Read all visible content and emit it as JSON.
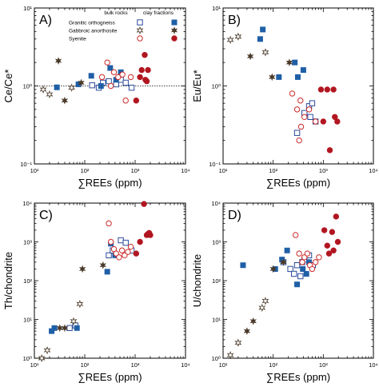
{
  "chart_data": [
    {
      "type": "scatter",
      "panel_label": "A)",
      "xlabel": "∑REEs (ppm)",
      "ylabel": "Ce/Ce*",
      "xscale": "log",
      "yscale": "log",
      "xlim": [
        10,
        10000
      ],
      "ylim": [
        0.1,
        10
      ],
      "x_tick_labels": [
        "10¹",
        "10²",
        "10³",
        "10⁴"
      ],
      "y_tick_labels": [
        "10⁻¹",
        "10⁰",
        "10¹"
      ],
      "reference_line": {
        "y": 1,
        "style": "dotted"
      },
      "legend": {
        "placement": "top-right",
        "headers": [
          "bulk rocks",
          "clay fractions"
        ],
        "rows": [
          "Granitic orthogneiss",
          "Gabbroic anorthosite",
          "Syenite"
        ]
      },
      "series": [
        {
          "name": "Granitic orthogneiss",
          "sample": "bulk rocks",
          "marker": "square-open",
          "color": "#2b4a9c",
          "points": [
            [
              140,
              1.02
            ],
            [
              190,
              0.95
            ],
            [
              230,
              1.1
            ],
            [
              300,
              1.15
            ],
            [
              420,
              1.05
            ],
            [
              520,
              1.2
            ],
            [
              650,
              1.1
            ],
            [
              850,
              0.95
            ]
          ]
        },
        {
          "name": "Granitic orthogneiss",
          "sample": "clay fractions",
          "marker": "square-filled",
          "color": "#1f5fa6",
          "points": [
            [
              28,
              0.96
            ],
            [
              75,
              1.05
            ],
            [
              135,
              1.35
            ],
            [
              210,
              1.0
            ],
            [
              320,
              1.7
            ],
            [
              420,
              1.2
            ],
            [
              520,
              1.5
            ]
          ]
        },
        {
          "name": "Gabbroic anorthosite",
          "sample": "bulk rocks",
          "marker": "star-open",
          "color": "#4a3a2a",
          "points": [
            [
              15,
              0.9
            ],
            [
              20,
              0.78
            ],
            [
              55,
              0.95
            ]
          ]
        },
        {
          "name": "Gabbroic anorthosite",
          "sample": "clay fractions",
          "marker": "star-filled",
          "color": "#4a3a2a",
          "points": [
            [
              30,
              2.1
            ],
            [
              40,
              0.65
            ],
            [
              85,
              1.1
            ]
          ]
        },
        {
          "name": "Syenite",
          "sample": "bulk rocks",
          "marker": "circle-open",
          "color": "#cc2b2b",
          "points": [
            [
              220,
              1.3
            ],
            [
              280,
              2.0
            ],
            [
              330,
              1.0
            ],
            [
              380,
              1.5
            ],
            [
              460,
              1.3
            ],
            [
              560,
              1.4
            ],
            [
              650,
              0.65
            ],
            [
              820,
              1.3
            ]
          ]
        },
        {
          "name": "Syenite",
          "sample": "clay fractions",
          "marker": "circle-filled",
          "color": "#b11620",
          "points": [
            [
              1050,
              0.65
            ],
            [
              1250,
              1.3
            ],
            [
              1350,
              1.6
            ],
            [
              1550,
              2.5
            ],
            [
              1600,
              1.2
            ],
            [
              1700,
              1.15
            ],
            [
              1800,
              1.6
            ]
          ]
        }
      ]
    },
    {
      "type": "scatter",
      "panel_label": "B)",
      "xlabel": "∑REEs (ppm)",
      "ylabel": "Eu/Eu*",
      "xscale": "log",
      "yscale": "log",
      "xlim": [
        10,
        10000
      ],
      "ylim": [
        0.1,
        10
      ],
      "x_tick_labels": [
        "10¹",
        "10²",
        "10³",
        "10⁴"
      ],
      "y_tick_labels": [
        "10⁻¹",
        "10⁰",
        "10¹"
      ],
      "series": [
        {
          "name": "Granitic orthogneiss",
          "sample": "bulk rocks",
          "marker": "square-open",
          "color": "#2b4a9c",
          "points": [
            [
              300,
              0.25
            ],
            [
              420,
              0.45
            ],
            [
              520,
              0.55
            ],
            [
              600,
              0.6
            ],
            [
              700,
              0.35
            ],
            [
              550,
              0.4
            ]
          ]
        },
        {
          "name": "Granitic orthogneiss",
          "sample": "clay fractions",
          "marker": "square-filled",
          "color": "#1f5fa6",
          "points": [
            [
              55,
              4.0
            ],
            [
              62,
              5.3
            ],
            [
              130,
              1.3
            ],
            [
              270,
              2.0
            ],
            [
              310,
              1.3
            ],
            [
              400,
              1.6
            ]
          ]
        },
        {
          "name": "Gabbroic anorthosite",
          "sample": "bulk rocks",
          "marker": "star-open",
          "color": "#4a3a2a",
          "points": [
            [
              14,
              3.9
            ],
            [
              20,
              4.3
            ],
            [
              70,
              2.7
            ]
          ]
        },
        {
          "name": "Gabbroic anorthosite",
          "sample": "clay fractions",
          "marker": "star-filled",
          "color": "#4a3a2a",
          "points": [
            [
              35,
              2.4
            ],
            [
              95,
              1.3
            ],
            [
              210,
              2.0
            ]
          ]
        },
        {
          "name": "Syenite",
          "sample": "bulk rocks",
          "marker": "circle-open",
          "color": "#cc2b2b",
          "points": [
            [
              240,
              0.8
            ],
            [
              300,
              0.5
            ],
            [
              330,
              0.2
            ],
            [
              360,
              0.3
            ],
            [
              420,
              0.4
            ],
            [
              520,
              0.5
            ],
            [
              700,
              0.35
            ],
            [
              350,
              0.65
            ]
          ]
        },
        {
          "name": "Syenite",
          "sample": "clay fractions",
          "marker": "circle-filled",
          "color": "#b11620",
          "points": [
            [
              900,
              0.9
            ],
            [
              1000,
              0.35
            ],
            [
              1200,
              0.9
            ],
            [
              1350,
              0.15
            ],
            [
              1600,
              0.9
            ],
            [
              1700,
              0.4
            ],
            [
              1900,
              0.35
            ]
          ]
        }
      ]
    },
    {
      "type": "scatter",
      "panel_label": "C)",
      "xlabel": "∑REEs (ppm)",
      "ylabel": "Th/chondrite",
      "xscale": "log",
      "yscale": "log",
      "xlim": [
        10,
        10000
      ],
      "ylim": [
        1,
        10000
      ],
      "x_tick_labels": [
        "10¹",
        "10²",
        "10³",
        "10⁴"
      ],
      "y_tick_labels": [
        "10⁰",
        "10¹",
        "10²",
        "10³",
        "10⁴"
      ],
      "series": [
        {
          "name": "Granitic orthogneiss",
          "sample": "bulk rocks",
          "marker": "square-open",
          "color": "#2b4a9c",
          "points": [
            [
              50,
              6
            ],
            [
              65,
              7
            ],
            [
              300,
              450
            ],
            [
              360,
              600
            ],
            [
              520,
              1100
            ],
            [
              650,
              950
            ],
            [
              850,
              600
            ]
          ]
        },
        {
          "name": "Granitic orthogneiss",
          "sample": "clay fractions",
          "marker": "square-filled",
          "color": "#1f5fa6",
          "points": [
            [
              22,
              5
            ],
            [
              25,
              6
            ],
            [
              70,
              6
            ],
            [
              280,
              170
            ],
            [
              330,
              900
            ],
            [
              400,
              450
            ]
          ]
        },
        {
          "name": "Gabbroic anorthosite",
          "sample": "bulk rocks",
          "marker": "star-open",
          "color": "#4a3a2a",
          "points": [
            [
              14,
              1
            ],
            [
              18,
              1.6
            ],
            [
              60,
              9
            ],
            [
              80,
              25
            ]
          ]
        },
        {
          "name": "Gabbroic anorthosite",
          "sample": "clay fractions",
          "marker": "star-filled",
          "color": "#4a3a2a",
          "points": [
            [
              32,
              6
            ],
            [
              40,
              6
            ],
            [
              90,
              200
            ],
            [
              230,
              250
            ]
          ]
        },
        {
          "name": "Syenite",
          "sample": "bulk rocks",
          "marker": "circle-open",
          "color": "#cc2b2b",
          "points": [
            [
              300,
              3000
            ],
            [
              330,
              1000
            ],
            [
              380,
              650
            ],
            [
              420,
              500
            ],
            [
              480,
              400
            ],
            [
              550,
              600
            ],
            [
              620,
              450
            ],
            [
              720,
              550
            ],
            [
              820,
              750
            ]
          ]
        },
        {
          "name": "Syenite",
          "sample": "clay fractions",
          "marker": "circle-filled",
          "color": "#b11620",
          "points": [
            [
              1050,
              500
            ],
            [
              1250,
              1000
            ],
            [
              1500,
              9500
            ],
            [
              1700,
              1500
            ],
            [
              1800,
              1600
            ],
            [
              1900,
              1700
            ],
            [
              2000,
              1500
            ]
          ]
        }
      ]
    },
    {
      "type": "scatter",
      "panel_label": "D)",
      "xlabel": "∑REEs (ppm)",
      "ylabel": "U/chondrite",
      "xscale": "log",
      "yscale": "log",
      "xlim": [
        10,
        10000
      ],
      "ylim": [
        1,
        10000
      ],
      "x_tick_labels": [
        "10¹",
        "10²",
        "10³",
        "10⁴"
      ],
      "y_tick_labels": [
        "10⁰",
        "10¹",
        "10²",
        "10³",
        "10⁴"
      ],
      "series": [
        {
          "name": "Granitic orthogneiss",
          "sample": "bulk rocks",
          "marker": "square-open",
          "color": "#2b4a9c",
          "points": [
            [
              160,
              300
            ],
            [
              220,
              200
            ],
            [
              260,
              150
            ],
            [
              300,
              250
            ],
            [
              350,
              130
            ],
            [
              380,
              300
            ],
            [
              420,
              350
            ],
            [
              520,
              450
            ],
            [
              620,
              250
            ]
          ]
        },
        {
          "name": "Granitic orthogneiss",
          "sample": "clay fractions",
          "marker": "square-filled",
          "color": "#1f5fa6",
          "points": [
            [
              25,
              250
            ],
            [
              110,
              200
            ],
            [
              150,
              350
            ],
            [
              190,
              600
            ],
            [
              300,
              80
            ],
            [
              390,
              200
            ],
            [
              460,
              150
            ],
            [
              520,
              300
            ]
          ]
        },
        {
          "name": "Gabbroic anorthosite",
          "sample": "bulk rocks",
          "marker": "star-open",
          "color": "#4a3a2a",
          "points": [
            [
              14,
              1.2
            ],
            [
              20,
              2.5
            ],
            [
              60,
              20
            ],
            [
              70,
              30
            ]
          ]
        },
        {
          "name": "Gabbroic anorthosite",
          "sample": "clay fractions",
          "marker": "star-filled",
          "color": "#4a3a2a",
          "points": [
            [
              30,
              5
            ],
            [
              40,
              9
            ],
            [
              100,
              200
            ],
            [
              160,
              300
            ]
          ]
        },
        {
          "name": "Syenite",
          "sample": "bulk rocks",
          "marker": "circle-open",
          "color": "#cc2b2b",
          "points": [
            [
              280,
              1500
            ],
            [
              330,
              500
            ],
            [
              380,
              300
            ],
            [
              420,
              400
            ],
            [
              480,
              500
            ],
            [
              540,
              250
            ],
            [
              600,
              200
            ],
            [
              700,
              300
            ],
            [
              820,
              400
            ]
          ]
        },
        {
          "name": "Syenite",
          "sample": "clay fractions",
          "marker": "circle-filled",
          "color": "#b11620",
          "points": [
            [
              1050,
              2000
            ],
            [
              1200,
              800
            ],
            [
              1300,
              500
            ],
            [
              1500,
              1800
            ],
            [
              1600,
              600
            ],
            [
              1800,
              4500
            ],
            [
              1950,
              1000
            ]
          ]
        }
      ]
    }
  ]
}
